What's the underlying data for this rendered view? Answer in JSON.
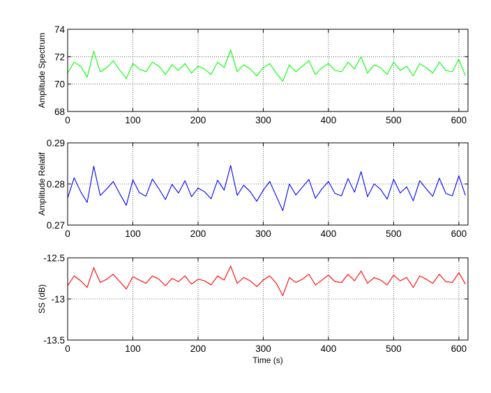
{
  "chart_data": [
    {
      "type": "line",
      "title": "",
      "xlabel": "",
      "ylabel": "Amplitude Spectrum",
      "xlim": [
        0,
        614
      ],
      "ylim": [
        68,
        74
      ],
      "xticks": [
        0,
        100,
        200,
        300,
        400,
        500,
        600
      ],
      "yticks": [
        68,
        70,
        72,
        74
      ],
      "ytick_labels": [
        "68",
        "70",
        "72",
        "74"
      ],
      "xtick_labels": [
        "0",
        "100",
        "200",
        "300",
        "400",
        "500",
        "600"
      ],
      "grid": true,
      "series": [
        {
          "color": "#00ff00",
          "x": [
            0,
            10,
            20,
            30,
            40,
            50,
            60,
            70,
            80,
            90,
            100,
            110,
            120,
            130,
            140,
            150,
            160,
            170,
            180,
            190,
            200,
            210,
            220,
            230,
            240,
            250,
            260,
            270,
            280,
            290,
            300,
            310,
            320,
            330,
            340,
            350,
            360,
            370,
            380,
            390,
            400,
            410,
            420,
            430,
            440,
            450,
            460,
            470,
            480,
            490,
            500,
            510,
            520,
            530,
            540,
            550,
            560,
            570,
            580,
            590,
            600,
            610
          ],
          "y": [
            70.8,
            71.6,
            71.3,
            70.5,
            72.4,
            70.9,
            71.2,
            71.7,
            71.0,
            70.4,
            71.5,
            71.1,
            70.9,
            71.6,
            71.3,
            70.7,
            71.4,
            71.0,
            71.5,
            70.8,
            71.3,
            71.1,
            70.7,
            71.6,
            71.2,
            72.5,
            70.9,
            71.4,
            71.1,
            70.6,
            71.2,
            71.5,
            70.8,
            70.2,
            71.4,
            70.9,
            71.3,
            71.7,
            70.7,
            71.2,
            71.5,
            71.0,
            70.9,
            71.6,
            71.1,
            72.0,
            70.8,
            71.4,
            71.2,
            70.7,
            71.6,
            71.0,
            71.3,
            70.6,
            71.5,
            71.2,
            70.8,
            71.6,
            71.0,
            70.9,
            71.8,
            70.6
          ]
        }
      ]
    },
    {
      "type": "line",
      "title": "",
      "xlabel": "",
      "ylabel": "Amplitude Relatif",
      "xlim": [
        0,
        614
      ],
      "ylim": [
        0.27,
        0.29
      ],
      "xticks": [
        0,
        100,
        200,
        300,
        400,
        500,
        600
      ],
      "yticks": [
        0.27,
        0.28,
        0.29
      ],
      "ytick_labels": [
        "0.27",
        "0.28",
        "0.29"
      ],
      "xtick_labels": [
        "0",
        "100",
        "200",
        "300",
        "400",
        "500",
        "600"
      ],
      "grid": true,
      "series": [
        {
          "color": "#0000ff",
          "x": [
            0,
            10,
            20,
            30,
            40,
            50,
            60,
            70,
            80,
            90,
            100,
            110,
            120,
            130,
            140,
            150,
            160,
            170,
            180,
            190,
            200,
            210,
            220,
            230,
            240,
            250,
            260,
            270,
            280,
            290,
            300,
            310,
            320,
            330,
            340,
            350,
            360,
            370,
            380,
            390,
            400,
            410,
            420,
            430,
            440,
            450,
            460,
            470,
            480,
            490,
            500,
            510,
            520,
            530,
            540,
            550,
            560,
            570,
            580,
            590,
            600,
            610
          ],
          "y": [
            0.2766,
            0.2815,
            0.2781,
            0.2755,
            0.2843,
            0.2772,
            0.2788,
            0.2806,
            0.2776,
            0.2748,
            0.281,
            0.2779,
            0.277,
            0.2812,
            0.2788,
            0.2762,
            0.2799,
            0.2778,
            0.2808,
            0.2769,
            0.279,
            0.2781,
            0.2764,
            0.2809,
            0.2785,
            0.2845,
            0.2772,
            0.2797,
            0.2781,
            0.2758,
            0.2785,
            0.2806,
            0.277,
            0.2735,
            0.28,
            0.2773,
            0.2792,
            0.2811,
            0.2765,
            0.2788,
            0.2806,
            0.2777,
            0.2771,
            0.2813,
            0.278,
            0.283,
            0.2769,
            0.28,
            0.2787,
            0.2763,
            0.2811,
            0.2778,
            0.2793,
            0.2759,
            0.2808,
            0.2788,
            0.277,
            0.2814,
            0.2777,
            0.2771,
            0.282,
            0.2772
          ]
        }
      ]
    },
    {
      "type": "line",
      "title": "",
      "xlabel": "Time (s)",
      "ylabel": "SS (dB)",
      "xlim": [
        0,
        614
      ],
      "ylim": [
        -13.5,
        -12.5
      ],
      "xticks": [
        0,
        100,
        200,
        300,
        400,
        500,
        600
      ],
      "yticks": [
        -13.5,
        -13,
        -12.5
      ],
      "ytick_labels": [
        "-13.5",
        "-13",
        "-12.5"
      ],
      "xtick_labels": [
        "0",
        "100",
        "200",
        "300",
        "400",
        "500",
        "600"
      ],
      "grid": true,
      "series": [
        {
          "color": "#ff0000",
          "x": [
            0,
            10,
            20,
            30,
            40,
            50,
            60,
            70,
            80,
            90,
            100,
            110,
            120,
            130,
            140,
            150,
            160,
            170,
            180,
            190,
            200,
            210,
            220,
            230,
            240,
            250,
            260,
            270,
            280,
            290,
            300,
            310,
            320,
            330,
            340,
            350,
            360,
            370,
            380,
            390,
            400,
            410,
            420,
            430,
            440,
            450,
            460,
            470,
            480,
            490,
            500,
            510,
            520,
            530,
            540,
            550,
            560,
            570,
            580,
            590,
            600,
            610
          ],
          "y": [
            -12.84,
            -12.72,
            -12.78,
            -12.86,
            -12.62,
            -12.8,
            -12.76,
            -12.7,
            -12.79,
            -12.88,
            -12.73,
            -12.77,
            -12.81,
            -12.72,
            -12.76,
            -12.84,
            -12.75,
            -12.79,
            -12.72,
            -12.82,
            -12.76,
            -12.78,
            -12.83,
            -12.72,
            -12.77,
            -12.6,
            -12.81,
            -12.74,
            -12.78,
            -12.85,
            -12.77,
            -12.72,
            -12.81,
            -12.96,
            -12.74,
            -12.8,
            -12.76,
            -12.7,
            -12.83,
            -12.77,
            -12.71,
            -12.79,
            -12.8,
            -12.7,
            -12.78,
            -12.66,
            -12.81,
            -12.74,
            -12.77,
            -12.83,
            -12.71,
            -12.78,
            -12.74,
            -12.86,
            -12.72,
            -12.76,
            -12.81,
            -12.7,
            -12.79,
            -12.8,
            -12.68,
            -12.82
          ]
        }
      ]
    }
  ]
}
